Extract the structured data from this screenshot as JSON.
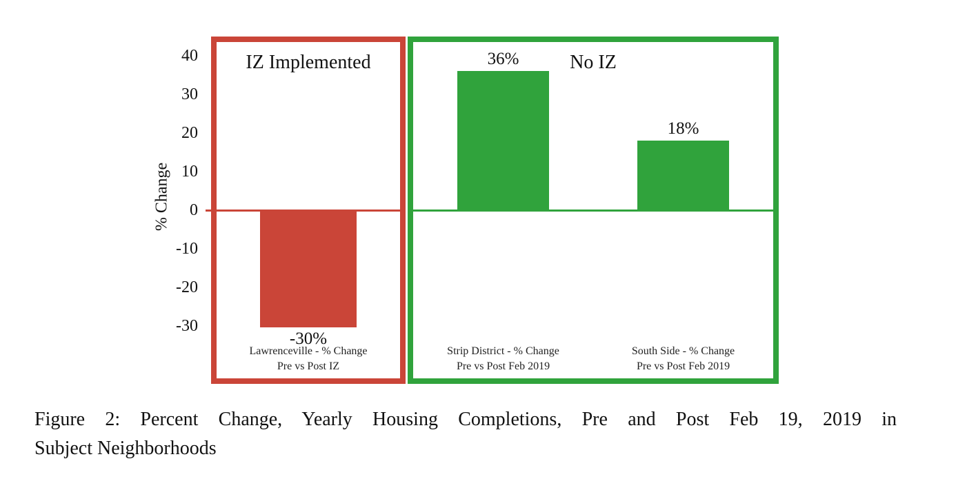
{
  "colors": {
    "red": "#CA4538",
    "green": "#30A33C",
    "text": "#111111",
    "background": "#ffffff"
  },
  "chart_data": {
    "type": "bar",
    "ylabel": "% Change",
    "ylim": [
      -45,
      45
    ],
    "yticks": [
      40,
      30,
      20,
      10,
      0,
      -10,
      -20,
      -30
    ],
    "grid": false,
    "legend": false,
    "bar_label_position": "outside-end",
    "panels": [
      {
        "title": "IZ Implemented",
        "border_color": "#CA4538",
        "zero_tick_outside": true,
        "bars": [
          {
            "category_line1": "Lawrenceville - % Change",
            "category_line2": "Pre vs Post IZ",
            "value": -30,
            "label": "-30%",
            "color": "#CA4538"
          }
        ]
      },
      {
        "title": "No IZ",
        "border_color": "#30A33C",
        "zero_tick_outside": false,
        "bars": [
          {
            "category_line1": "Strip District - % Change",
            "category_line2": "Pre vs Post Feb 2019",
            "value": 36,
            "label": "36%",
            "color": "#30A33C"
          },
          {
            "category_line1": "South Side - % Change",
            "category_line2": "Pre vs Post Feb 2019",
            "value": 18,
            "label": "18%",
            "color": "#30A33C"
          }
        ]
      }
    ]
  },
  "figure": {
    "caption_line1": "Figure 2: Percent Change, Yearly Housing Completions, Pre and Post Feb 19, 2019 in",
    "caption_line2": "Subject Neighborhoods"
  }
}
